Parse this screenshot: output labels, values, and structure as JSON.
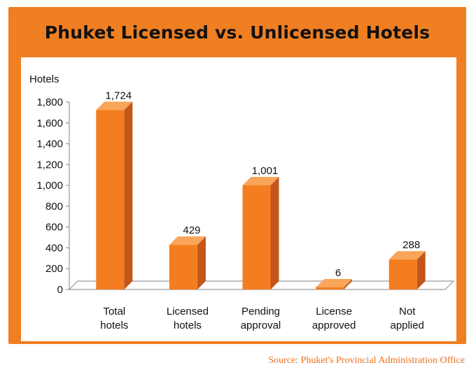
{
  "chart_data": {
    "type": "bar",
    "title": "Phuket Licensed vs. Unlicensed Hotels",
    "ylabel": "Hotels",
    "xlabel": "",
    "categories": [
      [
        "Total",
        "hotels"
      ],
      [
        "Licensed",
        "hotels"
      ],
      [
        "Pending",
        "approval"
      ],
      [
        "License",
        "approved"
      ],
      [
        "Not",
        "applied"
      ]
    ],
    "values": [
      1724,
      429,
      1001,
      6,
      288
    ],
    "value_labels": [
      "1,724",
      "429",
      "1,001",
      "6",
      "288"
    ],
    "ylim": [
      0,
      1800
    ],
    "yticks": [
      0,
      200,
      400,
      600,
      800,
      1000,
      1200,
      1400,
      1600,
      1800
    ],
    "ytick_labels": [
      "0",
      "200",
      "400",
      "600",
      "800",
      "1,000",
      "1,200",
      "1,400",
      "1,600",
      "1,800"
    ],
    "grid": false,
    "legend": "none",
    "style": "3d-bar",
    "colors": {
      "frame": "#f07f22",
      "bar_front": "#f47d20",
      "bar_top": "#f9a55a",
      "bar_side": "#c4561a",
      "floor": "#ffffff",
      "axis": "#9a9a9a",
      "source_text": "#ee6f1d"
    }
  },
  "source": "Source: Phuket's Provincial Administration Office"
}
